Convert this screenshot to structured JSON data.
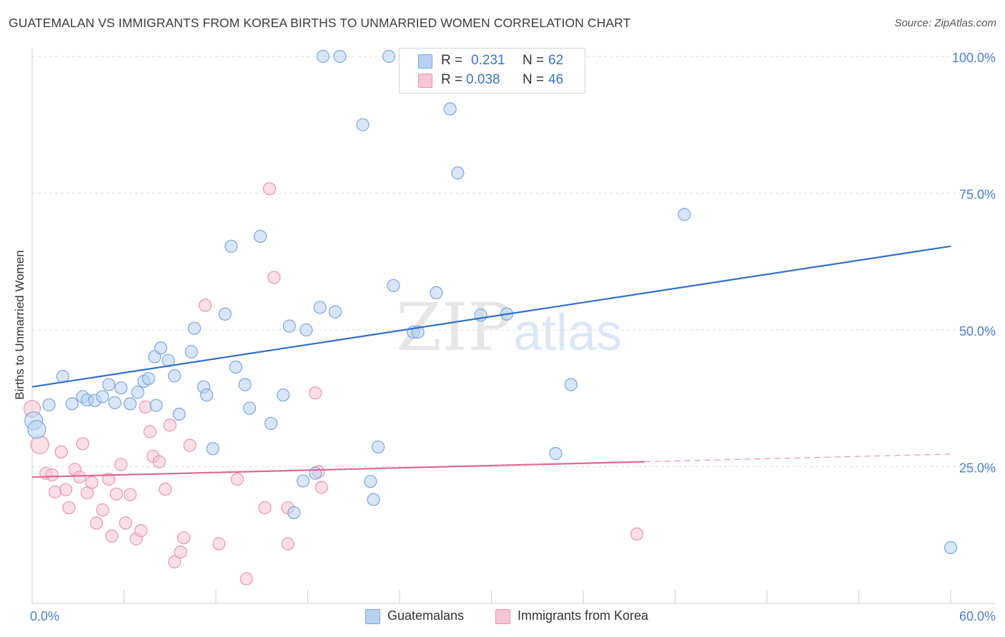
{
  "header": {
    "title": "GUATEMALAN VS IMMIGRANTS FROM KOREA BIRTHS TO UNMARRIED WOMEN CORRELATION CHART",
    "source": "Source: ZipAtlas.com"
  },
  "legend": {
    "row1": {
      "r_label": "R =",
      "r_value": "0.231",
      "n_label": "N =",
      "n_value": "62"
    },
    "row2": {
      "r_label": "R =",
      "r_value": "0.038",
      "n_label": "N =",
      "n_value": "46"
    }
  },
  "bottom_legend": {
    "series1": "Guatemalans",
    "series2": "Immigrants from Korea"
  },
  "colors": {
    "blue_fill": "#b8d1f0",
    "blue_stroke": "#7aa7e0",
    "blue_line": "#2f6fcf",
    "pink_fill": "#f7c5d4",
    "pink_stroke": "#eb94b0",
    "pink_line": "#e06894",
    "axis_text": "#4a7fd4"
  },
  "chart_data": {
    "type": "scatter",
    "title": "GUATEMALAN VS IMMIGRANTS FROM KOREA BIRTHS TO UNMARRIED WOMEN CORRELATION CHART",
    "xlabel": "",
    "ylabel": "Births to Unmarried Women",
    "xlim": [
      0,
      60
    ],
    "ylim": [
      0,
      100
    ],
    "x_tick_labels": [
      "0.0%",
      "60.0%"
    ],
    "y_tick_labels": [
      "25.0%",
      "50.0%",
      "75.0%",
      "100.0%"
    ],
    "y_ticks": [
      25,
      50,
      75,
      100
    ],
    "grid": true,
    "legend_position": "top-center",
    "watermark": "ZIPatlas",
    "series": [
      {
        "name": "Guatemalans",
        "r": 0.231,
        "n": 62,
        "trend": {
          "x": [
            0,
            60
          ],
          "y": [
            39.6,
            65.3
          ],
          "dashed_from": null
        },
        "points": [
          [
            0.1,
            33.4,
            22
          ],
          [
            1.1,
            36.3,
            14
          ],
          [
            2.0,
            41.5,
            14
          ],
          [
            2.6,
            36.5,
            14
          ],
          [
            3.3,
            37.8,
            14
          ],
          [
            3.6,
            37.2,
            14
          ],
          [
            4.1,
            37.1,
            14
          ],
          [
            4.6,
            37.8,
            14
          ],
          [
            5.0,
            40.0,
            14
          ],
          [
            5.4,
            36.7,
            14
          ],
          [
            5.8,
            39.4,
            14
          ],
          [
            6.4,
            36.5,
            14
          ],
          [
            6.9,
            38.6,
            14
          ],
          [
            7.3,
            40.6,
            14
          ],
          [
            7.6,
            41.1,
            14
          ],
          [
            8.1,
            36.2,
            14
          ],
          [
            8.0,
            45.1,
            14
          ],
          [
            8.4,
            46.7,
            14
          ],
          [
            8.9,
            44.4,
            14
          ],
          [
            9.3,
            41.6,
            14
          ],
          [
            9.6,
            34.6,
            14
          ],
          [
            10.4,
            46.0,
            14
          ],
          [
            10.6,
            50.3,
            14
          ],
          [
            11.2,
            39.6,
            14
          ],
          [
            11.4,
            38.1,
            14
          ],
          [
            11.8,
            28.3,
            14
          ],
          [
            12.6,
            52.9,
            14
          ],
          [
            13.0,
            65.3,
            14
          ],
          [
            13.3,
            43.2,
            14
          ],
          [
            13.9,
            40.0,
            14
          ],
          [
            14.2,
            35.7,
            14
          ],
          [
            14.9,
            67.1,
            14
          ],
          [
            15.6,
            32.9,
            14
          ],
          [
            16.4,
            38.1,
            14
          ],
          [
            16.8,
            50.7,
            14
          ],
          [
            17.1,
            16.6,
            14
          ],
          [
            17.7,
            22.4,
            14
          ],
          [
            17.9,
            50.0,
            14
          ],
          [
            18.5,
            23.8,
            14
          ],
          [
            18.8,
            54.1,
            14
          ],
          [
            19.8,
            53.3,
            14
          ],
          [
            19.0,
            100.0,
            14
          ],
          [
            20.1,
            100.0,
            14
          ],
          [
            21.6,
            87.5,
            14
          ],
          [
            22.1,
            22.3,
            14
          ],
          [
            22.3,
            19.0,
            14
          ],
          [
            22.6,
            28.6,
            14
          ],
          [
            23.3,
            100.0,
            14
          ],
          [
            23.6,
            58.1,
            14
          ],
          [
            24.9,
            49.6,
            14
          ],
          [
            25.2,
            49.6,
            14
          ],
          [
            26.4,
            56.8,
            14
          ],
          [
            27.3,
            100.0,
            14
          ],
          [
            27.3,
            90.4,
            14
          ],
          [
            27.8,
            78.7,
            14
          ],
          [
            29.3,
            52.7,
            14
          ],
          [
            31.0,
            52.9,
            14
          ],
          [
            34.2,
            27.4,
            14
          ],
          [
            35.2,
            40.0,
            14
          ],
          [
            42.6,
            71.1,
            14
          ],
          [
            60.0,
            10.2,
            14
          ],
          [
            0.3,
            31.8,
            22
          ]
        ]
      },
      {
        "name": "Immigrants from Korea",
        "r": 0.038,
        "n": 46,
        "trend": {
          "x": [
            0,
            40,
            60
          ],
          "y": [
            23.1,
            25.9,
            27.3
          ],
          "dashed_from": 40
        },
        "points": [
          [
            0.0,
            35.6,
            20
          ],
          [
            0.5,
            29.0,
            22
          ],
          [
            0.9,
            23.8,
            14
          ],
          [
            1.3,
            23.5,
            14
          ],
          [
            1.5,
            20.4,
            14
          ],
          [
            1.9,
            27.7,
            14
          ],
          [
            2.2,
            20.8,
            14
          ],
          [
            2.4,
            17.5,
            14
          ],
          [
            2.8,
            24.5,
            14
          ],
          [
            3.1,
            23.1,
            14
          ],
          [
            3.3,
            29.2,
            14
          ],
          [
            3.6,
            20.2,
            14
          ],
          [
            3.9,
            22.1,
            14
          ],
          [
            4.2,
            14.7,
            14
          ],
          [
            4.6,
            17.1,
            14
          ],
          [
            5.0,
            22.7,
            14
          ],
          [
            5.2,
            12.3,
            14
          ],
          [
            5.5,
            20.0,
            14
          ],
          [
            5.8,
            25.4,
            14
          ],
          [
            6.1,
            14.7,
            14
          ],
          [
            6.4,
            19.9,
            14
          ],
          [
            6.8,
            11.8,
            14
          ],
          [
            7.1,
            13.3,
            14
          ],
          [
            7.4,
            35.9,
            14
          ],
          [
            7.7,
            31.4,
            14
          ],
          [
            7.9,
            26.9,
            14
          ],
          [
            8.3,
            25.9,
            14
          ],
          [
            8.7,
            20.9,
            14
          ],
          [
            9.0,
            32.6,
            14
          ],
          [
            9.3,
            7.6,
            14
          ],
          [
            9.7,
            9.4,
            14
          ],
          [
            9.9,
            12.0,
            14
          ],
          [
            10.3,
            28.9,
            14
          ],
          [
            11.3,
            54.5,
            14
          ],
          [
            12.2,
            10.9,
            14
          ],
          [
            13.4,
            22.7,
            14
          ],
          [
            14.0,
            4.5,
            14
          ],
          [
            15.2,
            17.5,
            14
          ],
          [
            15.5,
            75.8,
            14
          ],
          [
            15.8,
            59.6,
            14
          ],
          [
            16.7,
            17.5,
            14
          ],
          [
            16.7,
            10.9,
            14
          ],
          [
            18.5,
            38.5,
            14
          ],
          [
            18.7,
            24.1,
            14
          ],
          [
            18.9,
            21.2,
            14
          ],
          [
            39.5,
            12.7,
            14
          ]
        ]
      }
    ]
  }
}
